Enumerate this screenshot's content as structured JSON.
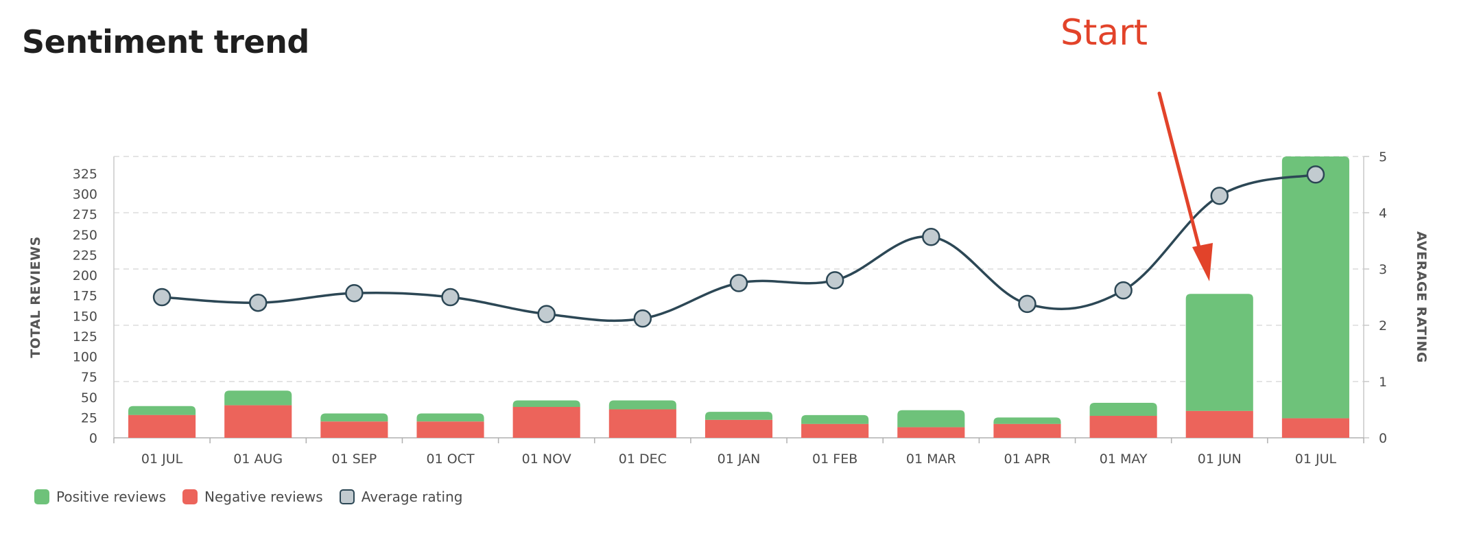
{
  "title": "Sentiment trend",
  "annotation": {
    "text": "Start"
  },
  "chart_data": {
    "type": "bar",
    "categories": [
      "01 JUL",
      "01 AUG",
      "01 SEP",
      "01 OCT",
      "01 NOV",
      "01 DEC",
      "01 JAN",
      "01 FEB",
      "01 MAR",
      "01 APR",
      "01 MAY",
      "01 JUN",
      "01 JUL"
    ],
    "series": [
      {
        "name": "Positive reviews",
        "type": "bar",
        "axis": "left",
        "color": "#6ec27a",
        "values": [
          11,
          18,
          10,
          10,
          8,
          11,
          10,
          11,
          21,
          8,
          16,
          144,
          322
        ]
      },
      {
        "name": "Negative reviews",
        "type": "bar",
        "axis": "left",
        "color": "#ec645b",
        "values": [
          28,
          40,
          20,
          20,
          38,
          35,
          22,
          17,
          13,
          17,
          27,
          33,
          24
        ]
      },
      {
        "name": "Average rating",
        "type": "line",
        "axis": "right",
        "color": "#2c4755",
        "marker_color": "#c2cbd0",
        "values": [
          2.5,
          2.4,
          2.57,
          2.5,
          2.2,
          2.12,
          2.75,
          2.8,
          3.57,
          2.38,
          2.62,
          4.3,
          4.68
        ]
      }
    ],
    "ylabel": "TOTAL REVIEWS",
    "y2label": "AVERAGE RATING",
    "yticks": [
      0,
      25,
      50,
      75,
      100,
      125,
      150,
      175,
      200,
      225,
      250,
      275,
      300,
      325
    ],
    "ylim": [
      0,
      346
    ],
    "y2ticks": [
      0,
      1,
      2,
      3,
      4,
      5
    ],
    "y2lim": [
      0,
      5
    ],
    "grid": true,
    "legend_position": "bottom-left"
  }
}
